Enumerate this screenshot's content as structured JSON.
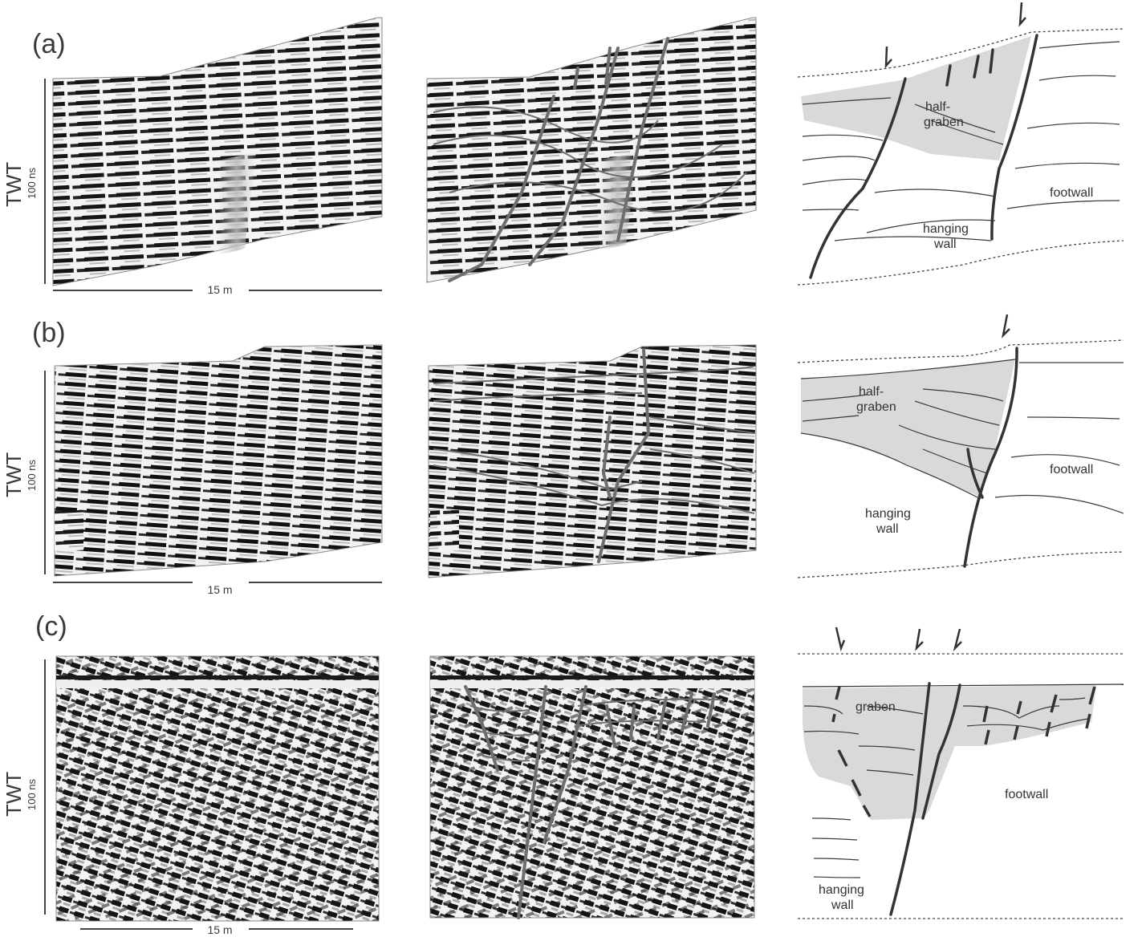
{
  "figure": {
    "panels": [
      {
        "id": "a",
        "letter": "(a)",
        "axis_label": "TWT",
        "time_label": "100 ns",
        "scale_label": "15 m",
        "interpretation_labels": [
          "half-",
          "graben",
          "footwall",
          "hanging",
          "wall"
        ]
      },
      {
        "id": "b",
        "letter": "(b)",
        "axis_label": "TWT",
        "time_label": "100 ns",
        "scale_label": "15 m",
        "interpretation_labels": [
          "half-",
          "graben",
          "footwall",
          "hanging",
          "wall"
        ]
      },
      {
        "id": "c",
        "letter": "(c)",
        "axis_label": "TWT",
        "time_label": "100 ns",
        "scale_label": "15 m",
        "interpretation_labels": [
          "graben",
          "footwall",
          "hanging",
          "wall"
        ]
      }
    ],
    "colors": {
      "infill": "#d9d9d9",
      "fault": "#3a3a3a",
      "interpreted_fault": "#7a7a7a",
      "text": "#3a3a3a"
    }
  }
}
